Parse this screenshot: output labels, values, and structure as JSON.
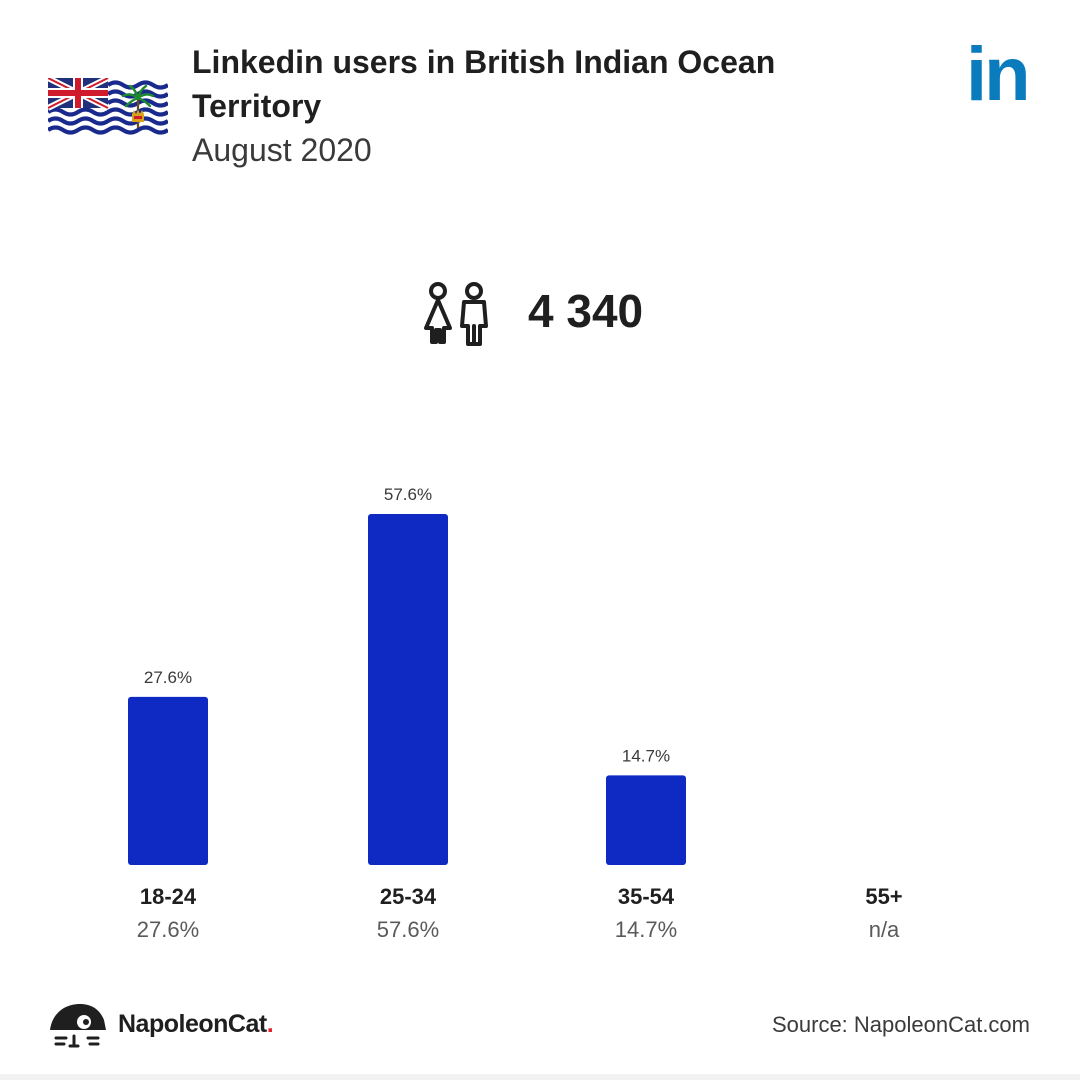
{
  "header": {
    "title": "Linkedin users in British Indian Ocean Territory",
    "subtitle": "August 2020",
    "brand_logo": "in"
  },
  "total": {
    "value": "4 340",
    "icon": "users-icon"
  },
  "chart_data": {
    "type": "bar",
    "categories": [
      "18-24",
      "25-34",
      "35-54",
      "55+"
    ],
    "values": [
      27.6,
      57.6,
      14.7,
      null
    ],
    "value_labels": [
      "27.6%",
      "57.6%",
      "14.7%",
      "n/a"
    ],
    "bar_labels": [
      "27.6%",
      "57.6%",
      "14.7%",
      ""
    ],
    "ylim": [
      0,
      57.6
    ],
    "bar_color": "#0f2ac2"
  },
  "footer": {
    "brand_name": "NapoleonCat",
    "brand_dot": ".",
    "source": "Source: NapoleonCat.com"
  },
  "colors": {
    "linkedin_blue": "#0a7bbd",
    "bar": "#0f2ac2",
    "brand_dot": "#e8202a"
  }
}
